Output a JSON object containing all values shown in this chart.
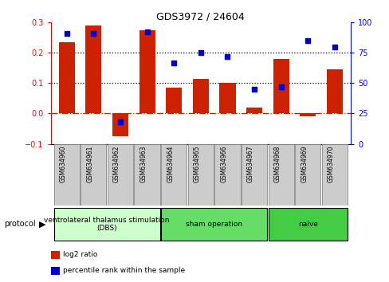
{
  "title": "GDS3972 / 24604",
  "samples": [
    "GSM634960",
    "GSM634961",
    "GSM634962",
    "GSM634963",
    "GSM634964",
    "GSM634965",
    "GSM634966",
    "GSM634967",
    "GSM634968",
    "GSM634969",
    "GSM634970"
  ],
  "log2_ratio": [
    0.235,
    0.29,
    -0.075,
    0.275,
    0.085,
    0.115,
    0.1,
    0.02,
    0.18,
    -0.01,
    0.145
  ],
  "percentile_rank": [
    91,
    91,
    18,
    92,
    67,
    75,
    72,
    45,
    47,
    85,
    80
  ],
  "groups": [
    {
      "label": "ventrolateral thalamus stimulation\n(DBS)",
      "start": 0,
      "end": 3,
      "color": "#ccffcc"
    },
    {
      "label": "sham operation",
      "start": 4,
      "end": 7,
      "color": "#66dd66"
    },
    {
      "label": "naive",
      "start": 8,
      "end": 10,
      "color": "#44cc44"
    }
  ],
  "ylim_left": [
    -0.1,
    0.3
  ],
  "ylim_right": [
    0,
    100
  ],
  "yticks_left": [
    -0.1,
    0.0,
    0.1,
    0.2,
    0.3
  ],
  "yticks_right": [
    0,
    25,
    50,
    75,
    100
  ],
  "hlines": [
    0.1,
    0.2
  ],
  "bar_color": "#cc2200",
  "scatter_color": "#0000cc",
  "zero_line_color": "#cc2200",
  "label_box_color": "#cccccc",
  "label_box_edge": "#888888",
  "protocol_label": "protocol",
  "legend_bar": "log2 ratio",
  "legend_scatter": "percentile rank within the sample"
}
